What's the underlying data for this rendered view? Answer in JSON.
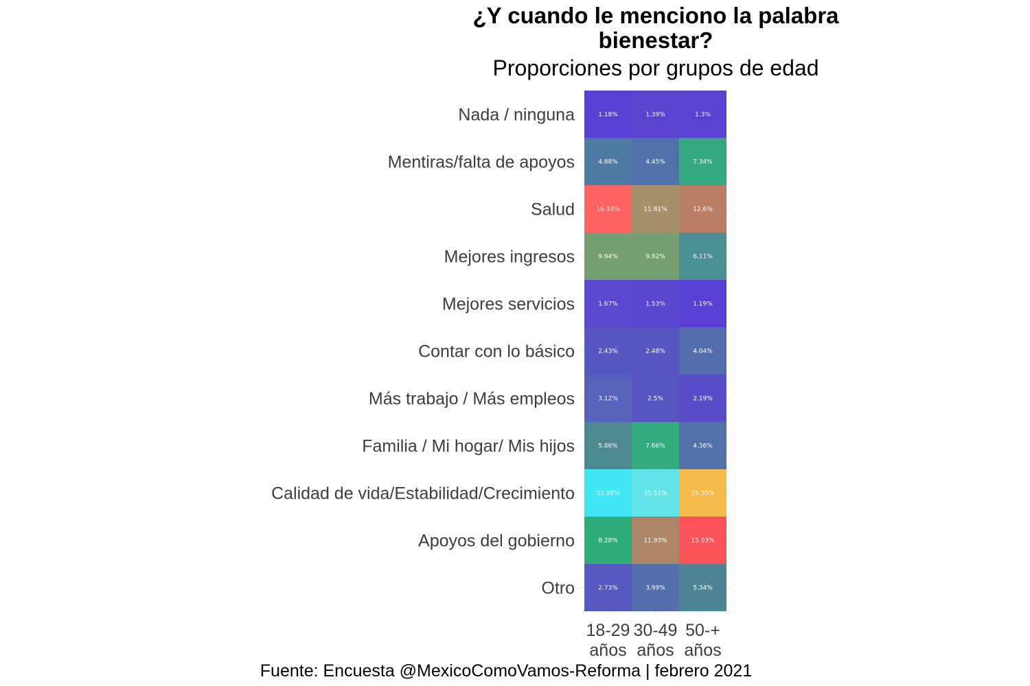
{
  "chart_data": {
    "type": "heatmap",
    "title_line1": "¿Y cuando le menciono la palabra",
    "title_line2": "bienestar?",
    "subtitle": "Proporciones por grupos de edad",
    "caption": "Fuente: Encuesta @MexicoComoVamos-Reforma | febrero 2021",
    "x_categories": [
      {
        "line1": "18-29",
        "line2": "años"
      },
      {
        "line1": "30-49",
        "line2": "años"
      },
      {
        "line1": "50-+",
        "line2": "años"
      }
    ],
    "rows": [
      {
        "label": "Nada / ninguna",
        "values": [
          1.18,
          1.39,
          1.3
        ],
        "texts": [
          "1.18%",
          "1.39%",
          "1.3%"
        ],
        "colors": [
          "#5036d0",
          "#5039cc",
          "#5038ce"
        ]
      },
      {
        "label": "Mentiras/falta de apoyos",
        "values": [
          4.88,
          4.45,
          7.34
        ],
        "texts": [
          "4.88%",
          "4.45%",
          "7.34%"
        ],
        "colors": [
          "#46739e",
          "#486aa4",
          "#2ba47b"
        ]
      },
      {
        "label": "Salud",
        "values": [
          16.33,
          11.81,
          12.6
        ],
        "texts": [
          "16.33%",
          "11.81%",
          "12.6%"
        ],
        "colors": [
          "#ff5b5b",
          "#a08a62",
          "#b6775c"
        ]
      },
      {
        "label": "Mejores ingresos",
        "values": [
          9.94,
          9.92,
          6.11
        ],
        "texts": [
          "9.94%",
          "9.92%",
          "6.11%"
        ],
        "colors": [
          "#6e9a68",
          "#6e9a68",
          "#3f898d"
        ]
      },
      {
        "label": "Mejores servicios",
        "values": [
          1.67,
          1.53,
          1.19
        ],
        "texts": [
          "1.67%",
          "1.53%",
          "1.19%"
        ],
        "colors": [
          "#513ecc",
          "#513dcc",
          "#5034d2"
        ]
      },
      {
        "label": "Contar con lo básico",
        "values": [
          2.43,
          2.48,
          4.04
        ],
        "texts": [
          "2.43%",
          "2.48%",
          "4.04%"
        ],
        "colors": [
          "#4e4dbf",
          "#4e4dbf",
          "#4a64a7"
        ]
      },
      {
        "label": "Más trabajo / Más empleos",
        "values": [
          3.12,
          2.5,
          2.19
        ],
        "texts": [
          "3.12%",
          "2.5%",
          "2.19%"
        ],
        "colors": [
          "#4d59b6",
          "#4f4cbf",
          "#5045c6"
        ]
      },
      {
        "label": "Familia / Mi hogar/ Mis hijos",
        "values": [
          5.86,
          7.66,
          4.36
        ],
        "texts": [
          "5.86%",
          "7.66%",
          "4.36%"
        ],
        "colors": [
          "#418388",
          "#27a777",
          "#4a69a4"
        ]
      },
      {
        "label": "Calidad de vida/Estabilidad/Crecimiento",
        "values": [
          35.98,
          35.51,
          29.55
        ],
        "texts": [
          "35.98%",
          "35.51%",
          "29.55%"
        ],
        "colors": [
          "#38e6f5",
          "#58e1e6",
          "#f5b642"
        ]
      },
      {
        "label": "Apoyos del gobierno",
        "values": [
          8.28,
          11.93,
          15.03
        ],
        "texts": [
          "8.28%",
          "11.93%",
          "15.03%"
        ],
        "colors": [
          "#23a872",
          "#a9805f",
          "#fc4a52"
        ]
      },
      {
        "label": "Otro",
        "values": [
          2.73,
          3.99,
          5.34
        ],
        "texts": [
          "2.73%",
          "3.99%",
          "5.34%"
        ],
        "colors": [
          "#4f4fbe",
          "#4a66a6",
          "#447d90"
        ]
      }
    ]
  }
}
